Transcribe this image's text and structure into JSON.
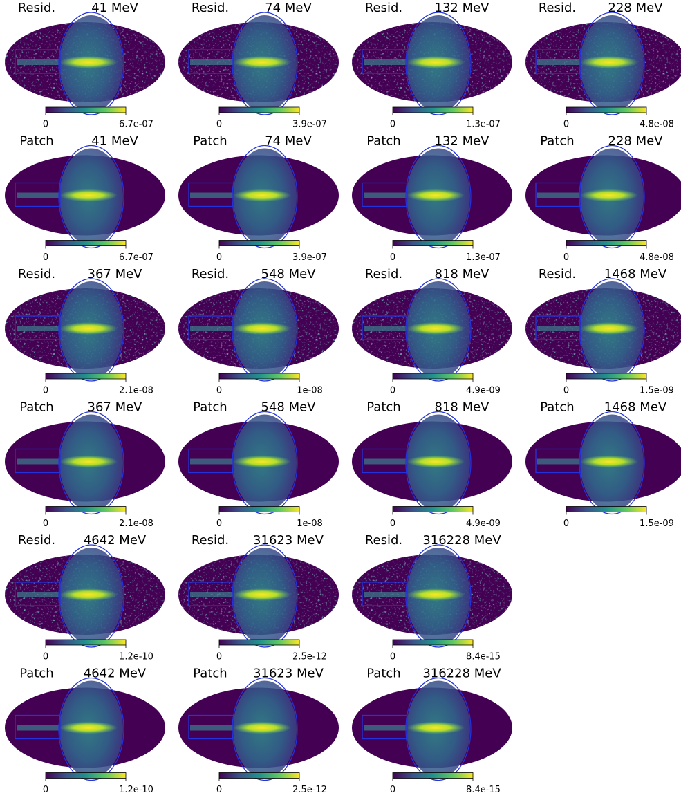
{
  "rows": [
    [
      {
        "label": "Resid.",
        "energy": "41 MeV",
        "cbar_ticks": [
          "0",
          "6.7e-07"
        ]
      },
      {
        "label": "Resid.",
        "energy": "74 MeV",
        "cbar_ticks": [
          "0",
          "3.9e-07"
        ]
      },
      {
        "label": "Resid.",
        "energy": "132 MeV",
        "cbar_ticks": [
          "0",
          "1.3e-07"
        ]
      },
      {
        "label": "Resid.",
        "energy": "228 MeV",
        "cbar_ticks": [
          "0",
          "4.8e-08"
        ]
      }
    ],
    [
      {
        "label": "Patch",
        "energy": "41 MeV",
        "cbar_ticks": [
          "0",
          "6.7e-07"
        ]
      },
      {
        "label": "Patch",
        "energy": "74 MeV",
        "cbar_ticks": [
          "0",
          "3.9e-07"
        ]
      },
      {
        "label": "Patch",
        "energy": "132 MeV",
        "cbar_ticks": [
          "0",
          "1.3e-07"
        ]
      },
      {
        "label": "Patch",
        "energy": "228 MeV",
        "cbar_ticks": [
          "0",
          "4.8e-08"
        ]
      }
    ],
    [
      {
        "label": "Resid.",
        "energy": "367 MeV",
        "cbar_ticks": [
          "0",
          "2.1e-08"
        ]
      },
      {
        "label": "Resid.",
        "energy": "548 MeV",
        "cbar_ticks": [
          "0",
          "1e-08"
        ]
      },
      {
        "label": "Resid.",
        "energy": "818 MeV",
        "cbar_ticks": [
          "0",
          "4.9e-09"
        ]
      },
      {
        "label": "Resid.",
        "energy": "1468 MeV",
        "cbar_ticks": [
          "0",
          "1.5e-09"
        ]
      }
    ],
    [
      {
        "label": "Patch",
        "energy": "367 MeV",
        "cbar_ticks": [
          "0",
          "2.1e-08"
        ]
      },
      {
        "label": "Patch",
        "energy": "548 MeV",
        "cbar_ticks": [
          "0",
          "1e-08"
        ]
      },
      {
        "label": "Patch",
        "energy": "818 MeV",
        "cbar_ticks": [
          "0",
          "4.9e-09"
        ]
      },
      {
        "label": "Patch",
        "energy": "1468 MeV",
        "cbar_ticks": [
          "0",
          "1.5e-09"
        ]
      }
    ],
    [
      {
        "label": "Resid.",
        "energy": "4642 MeV",
        "cbar_ticks": [
          "0",
          "1.2e-10"
        ]
      },
      {
        "label": "Resid.",
        "energy": "31623 MeV",
        "cbar_ticks": [
          "0",
          "2.5e-12"
        ]
      },
      {
        "label": "Resid.",
        "energy": "316228 MeV",
        "cbar_ticks": [
          "0",
          "8.4e-15"
        ]
      }
    ],
    [
      {
        "label": "Patch",
        "energy": "4642 MeV",
        "cbar_ticks": [
          "0",
          "1.2e-10"
        ]
      },
      {
        "label": "Patch",
        "energy": "31623 MeV",
        "cbar_ticks": [
          "0",
          "2.5e-12"
        ]
      },
      {
        "label": "Patch",
        "energy": "316228 MeV",
        "cbar_ticks": [
          "0",
          "8.4e-15"
        ]
      }
    ]
  ]
}
